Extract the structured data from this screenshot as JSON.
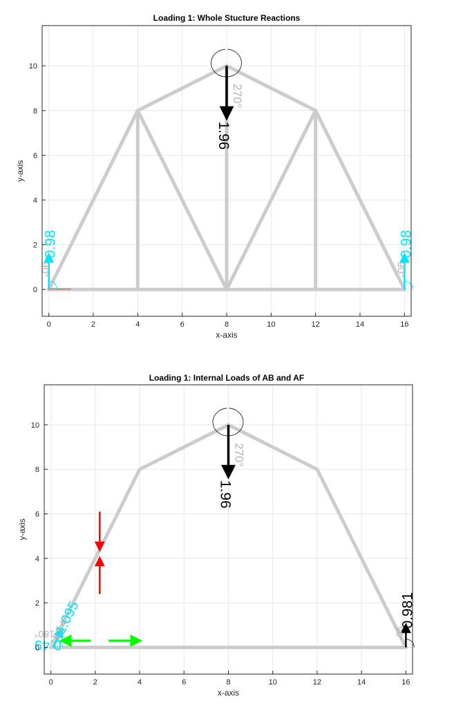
{
  "chart_data": [
    {
      "type": "truss-diagram",
      "title": "Loading 1: Whole Stucture Reactions",
      "xlabel": "x-axis",
      "ylabel": "y-axis",
      "xlim": [
        -0.3,
        16.3
      ],
      "ylim": [
        -1.2,
        11.8
      ],
      "xticks": [
        0,
        2,
        4,
        6,
        8,
        10,
        12,
        14,
        16
      ],
      "yticks": [
        0,
        2,
        4,
        6,
        8,
        10
      ],
      "grid": true,
      "members": [
        [
          [
            0,
            0
          ],
          [
            4,
            8
          ]
        ],
        [
          [
            4,
            8
          ],
          [
            8,
            10
          ]
        ],
        [
          [
            8,
            10
          ],
          [
            12,
            8
          ]
        ],
        [
          [
            12,
            8
          ],
          [
            16,
            0
          ]
        ],
        [
          [
            0,
            0
          ],
          [
            16,
            0
          ]
        ],
        [
          [
            4,
            0
          ],
          [
            4,
            8
          ]
        ],
        [
          [
            8,
            0
          ],
          [
            8,
            10
          ]
        ],
        [
          [
            12,
            0
          ],
          [
            12,
            8
          ]
        ],
        [
          [
            4,
            8
          ],
          [
            8,
            0
          ]
        ],
        [
          [
            8,
            0
          ],
          [
            12,
            8
          ]
        ]
      ],
      "loads": [
        {
          "name": "applied-load",
          "x": 8,
          "y": 10,
          "dir": "down",
          "length": 2.3,
          "value": "1.96",
          "angle": "270°",
          "color": "#000000"
        },
        {
          "name": "reaction-left",
          "x": 0,
          "y": 0,
          "dir": "up",
          "length": 1.55,
          "value": "0.98",
          "angle": "90°",
          "color": "#00e5ff"
        },
        {
          "name": "reaction-right",
          "x": 16,
          "y": 0,
          "dir": "up",
          "length": 1.55,
          "value": "0.98",
          "angle": "90°",
          "color": "#00e5ff"
        }
      ]
    },
    {
      "type": "truss-diagram",
      "title": "Loading 1: Internal Loads of AB and AF",
      "xlabel": "x-axis",
      "ylabel": "y-axis",
      "xlim": [
        -0.3,
        16.3
      ],
      "ylim": [
        -1.2,
        11.8
      ],
      "xticks": [
        0,
        2,
        4,
        6,
        8,
        10,
        12,
        14,
        16
      ],
      "yticks": [
        0,
        2,
        4,
        6,
        8,
        10
      ],
      "grid": true,
      "members": [
        [
          [
            0,
            0
          ],
          [
            4,
            8
          ]
        ],
        [
          [
            4,
            8
          ],
          [
            8,
            10
          ]
        ],
        [
          [
            8,
            10
          ],
          [
            12,
            8
          ]
        ],
        [
          [
            12,
            8
          ],
          [
            16,
            0
          ]
        ],
        [
          [
            0,
            0
          ],
          [
            16,
            0
          ]
        ]
      ],
      "loads": [
        {
          "name": "applied-load",
          "x": 8,
          "y": 10,
          "dir": "down",
          "length": 2.3,
          "value": "1.96",
          "angle": "270°",
          "color": "#000000"
        },
        {
          "name": "reaction-right",
          "x": 16,
          "y": 0,
          "dir": "up",
          "length": 1.0,
          "value": "0.981",
          "angle": "90°",
          "color": "#000000"
        },
        {
          "name": "reaction-left",
          "x": 0.1,
          "y": 0,
          "dir": "diag",
          "length": 1.8,
          "value": "1.095",
          "angle": "63.4°",
          "color": "#00e5ff"
        },
        {
          "name": "reaction-left-horizontal",
          "value": "0.49",
          "angle": "180°",
          "color": "#00e5ff"
        }
      ],
      "internal_forces": [
        {
          "member": "AB",
          "color": "#ff0000",
          "orientation": "vertical",
          "x": 2.2,
          "y_top": 6.1,
          "y_bottom": 2.4,
          "gap": [
            4.4,
            4.0
          ]
        },
        {
          "member": "AF",
          "color": "#00ff00",
          "orientation": "horizontal",
          "y": 0.3,
          "x_left": 0.5,
          "x_right": 4.0,
          "gap": [
            1.8,
            2.6
          ]
        }
      ]
    }
  ]
}
